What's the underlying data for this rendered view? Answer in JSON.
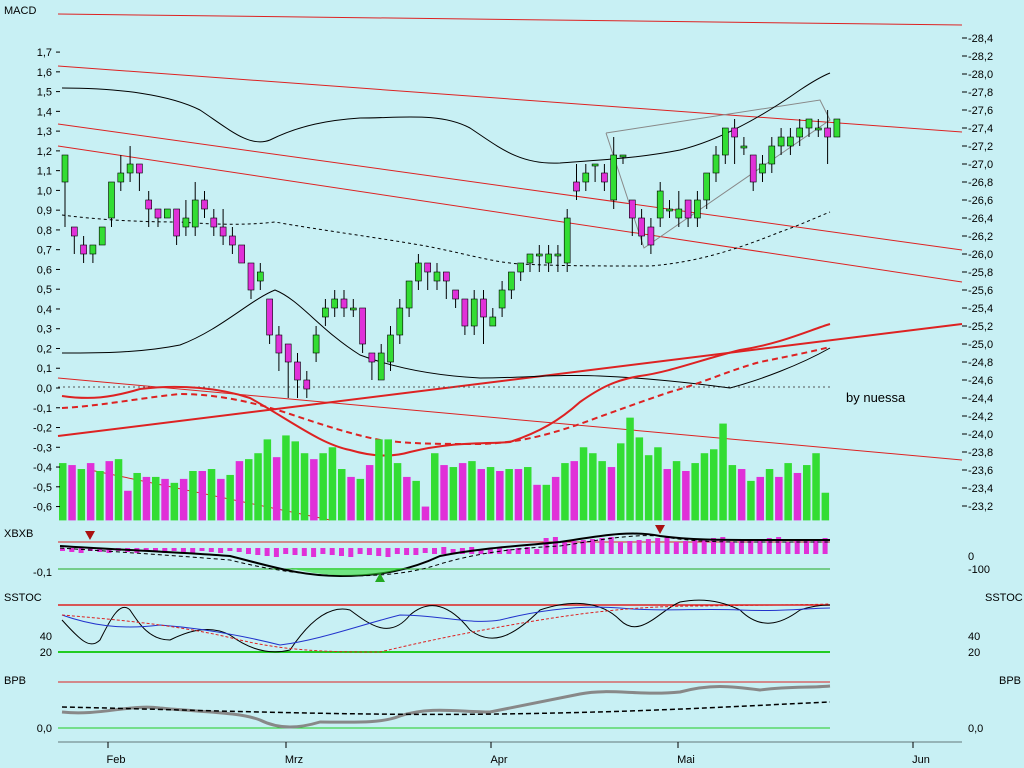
{
  "colors": {
    "background": "#c8f0f4",
    "up_candle": "#33dd33",
    "down_candle": "#e030d8",
    "trend_line": "#dd2222",
    "green_line": "#22cc22",
    "grey_line": "#888888"
  },
  "chart_data": [
    {
      "type": "candlestick",
      "panel": "main",
      "title": "MACD",
      "credit": "by nuessa",
      "left_axis_ticks": [
        "1,7",
        "1,6",
        "1,5",
        "1,4",
        "1,3",
        "1,2",
        "1,1",
        "1,0",
        "0,9",
        "0,8",
        "0,7",
        "0,6",
        "0,5",
        "0,4",
        "0,3",
        "0,2",
        "0,1",
        "0,0",
        "-0,1",
        "-0,2",
        "-0,3",
        "-0,4",
        "-0,5",
        "-0,6"
      ],
      "left_axis_range": [
        -0.6,
        1.7
      ],
      "right_axis_ticks": [
        "28,4",
        "28,2",
        "28,0",
        "27,8",
        "27,6",
        "27,4",
        "27,2",
        "27,0",
        "26,8",
        "26,6",
        "26,4",
        "26,2",
        "26,0",
        "25,8",
        "25,6",
        "25,4",
        "25,2",
        "25,0",
        "24,8",
        "24,6",
        "24,4",
        "24,2",
        "24,0",
        "23,8",
        "23,6",
        "23,4",
        "23,2"
      ],
      "right_axis_range": [
        23.2,
        28.4
      ],
      "x_labels": [
        "Feb",
        "Mrz",
        "Apr",
        "Mai",
        "Jun"
      ],
      "candles": [
        {
          "o": 26.8,
          "c": 27.1,
          "h": 27.1,
          "l": 26.3
        },
        {
          "o": 26.3,
          "c": 26.2,
          "h": 26.3,
          "l": 26.0
        },
        {
          "o": 26.1,
          "c": 26.0,
          "h": 26.2,
          "l": 25.9
        },
        {
          "o": 26.0,
          "c": 26.1,
          "h": 26.1,
          "l": 25.9
        },
        {
          "o": 26.1,
          "c": 26.3,
          "h": 26.3,
          "l": 26.1
        },
        {
          "o": 26.4,
          "c": 26.8,
          "h": 26.8,
          "l": 26.3
        },
        {
          "o": 26.8,
          "c": 26.9,
          "h": 27.1,
          "l": 26.7
        },
        {
          "o": 26.9,
          "c": 27.0,
          "h": 27.2,
          "l": 26.8
        },
        {
          "o": 27.0,
          "c": 26.9,
          "h": 27.0,
          "l": 26.7
        },
        {
          "o": 26.6,
          "c": 26.5,
          "h": 26.7,
          "l": 26.3
        },
        {
          "o": 26.5,
          "c": 26.4,
          "h": 26.5,
          "l": 26.3
        },
        {
          "o": 26.4,
          "c": 26.5,
          "h": 26.5,
          "l": 26.4
        },
        {
          "o": 26.5,
          "c": 26.2,
          "h": 26.5,
          "l": 26.1
        },
        {
          "o": 26.3,
          "c": 26.4,
          "h": 26.6,
          "l": 26.2
        },
        {
          "o": 26.3,
          "c": 26.6,
          "h": 26.8,
          "l": 26.2
        },
        {
          "o": 26.6,
          "c": 26.5,
          "h": 26.7,
          "l": 26.4
        },
        {
          "o": 26.4,
          "c": 26.3,
          "h": 26.5,
          "l": 26.2
        },
        {
          "o": 26.3,
          "c": 26.2,
          "h": 26.5,
          "l": 26.1
        },
        {
          "o": 26.2,
          "c": 26.1,
          "h": 26.3,
          "l": 26.0
        },
        {
          "o": 26.1,
          "c": 25.9,
          "h": 26.1,
          "l": 25.9
        },
        {
          "o": 25.9,
          "c": 25.6,
          "h": 25.9,
          "l": 25.5
        },
        {
          "o": 25.7,
          "c": 25.8,
          "h": 25.9,
          "l": 25.6
        },
        {
          "o": 25.5,
          "c": 25.1,
          "h": 25.5,
          "l": 25.0
        },
        {
          "o": 25.1,
          "c": 24.9,
          "h": 25.2,
          "l": 24.7
        },
        {
          "o": 25.0,
          "c": 24.8,
          "h": 25.0,
          "l": 24.4
        },
        {
          "o": 24.8,
          "c": 24.6,
          "h": 24.9,
          "l": 24.4
        },
        {
          "o": 24.6,
          "c": 24.5,
          "h": 24.7,
          "l": 24.4
        },
        {
          "o": 24.9,
          "c": 25.1,
          "h": 25.2,
          "l": 24.8
        },
        {
          "o": 25.3,
          "c": 25.4,
          "h": 25.5,
          "l": 25.2
        },
        {
          "o": 25.4,
          "c": 25.5,
          "h": 25.6,
          "l": 25.3
        },
        {
          "o": 25.5,
          "c": 25.4,
          "h": 25.6,
          "l": 25.3
        },
        {
          "o": 25.4,
          "c": 25.4,
          "h": 25.5,
          "l": 25.3
        },
        {
          "o": 25.4,
          "c": 25.0,
          "h": 25.4,
          "l": 24.9
        },
        {
          "o": 24.9,
          "c": 24.8,
          "h": 24.9,
          "l": 24.6
        },
        {
          "o": 24.6,
          "c": 24.9,
          "h": 25.0,
          "l": 24.6
        },
        {
          "o": 24.8,
          "c": 25.1,
          "h": 25.2,
          "l": 24.7
        },
        {
          "o": 25.1,
          "c": 25.4,
          "h": 25.5,
          "l": 25.0
        },
        {
          "o": 25.4,
          "c": 25.7,
          "h": 25.7,
          "l": 25.3
        },
        {
          "o": 25.7,
          "c": 25.9,
          "h": 26.0,
          "l": 25.6
        },
        {
          "o": 25.9,
          "c": 25.8,
          "h": 25.9,
          "l": 25.6
        },
        {
          "o": 25.7,
          "c": 25.8,
          "h": 25.9,
          "l": 25.6
        },
        {
          "o": 25.8,
          "c": 25.7,
          "h": 25.8,
          "l": 25.5
        },
        {
          "o": 25.6,
          "c": 25.5,
          "h": 25.6,
          "l": 25.4
        },
        {
          "o": 25.5,
          "c": 25.2,
          "h": 25.5,
          "l": 25.1
        },
        {
          "o": 25.2,
          "c": 25.5,
          "h": 25.6,
          "l": 25.1
        },
        {
          "o": 25.5,
          "c": 25.3,
          "h": 25.6,
          "l": 25.0
        },
        {
          "o": 25.2,
          "c": 25.3,
          "h": 25.4,
          "l": 25.2
        },
        {
          "o": 25.4,
          "c": 25.6,
          "h": 25.7,
          "l": 25.3
        },
        {
          "o": 25.6,
          "c": 25.8,
          "h": 25.8,
          "l": 25.5
        },
        {
          "o": 25.8,
          "c": 25.9,
          "h": 25.9,
          "l": 25.7
        },
        {
          "o": 25.9,
          "c": 26.0,
          "h": 26.0,
          "l": 25.8
        },
        {
          "o": 26.0,
          "c": 26.0,
          "h": 26.1,
          "l": 25.8
        },
        {
          "o": 25.9,
          "c": 26.0,
          "h": 26.1,
          "l": 25.8
        },
        {
          "o": 26.0,
          "c": 26.0,
          "h": 26.1,
          "l": 25.8
        },
        {
          "o": 25.9,
          "c": 26.4,
          "h": 26.5,
          "l": 25.8
        },
        {
          "o": 26.8,
          "c": 26.7,
          "h": 27.0,
          "l": 26.6
        },
        {
          "o": 26.8,
          "c": 26.9,
          "h": 27.0,
          "l": 26.7
        },
        {
          "o": 27.0,
          "c": 27.0,
          "h": 27.0,
          "l": 26.8
        },
        {
          "o": 26.9,
          "c": 26.8,
          "h": 27.0,
          "l": 26.7
        },
        {
          "o": 26.6,
          "c": 27.1,
          "h": 27.3,
          "l": 26.5
        },
        {
          "o": 27.1,
          "c": 27.1,
          "h": 27.1,
          "l": 27.0
        },
        {
          "o": 26.6,
          "c": 26.4,
          "h": 26.6,
          "l": 26.2
        },
        {
          "o": 26.4,
          "c": 26.2,
          "h": 26.5,
          "l": 26.1
        },
        {
          "o": 26.3,
          "c": 26.1,
          "h": 26.4,
          "l": 26.0
        },
        {
          "o": 26.4,
          "c": 26.7,
          "h": 26.8,
          "l": 26.3
        },
        {
          "o": 26.5,
          "c": 26.5,
          "h": 26.6,
          "l": 26.4
        },
        {
          "o": 26.4,
          "c": 26.5,
          "h": 26.7,
          "l": 26.3
        },
        {
          "o": 26.6,
          "c": 26.4,
          "h": 26.6,
          "l": 26.3
        },
        {
          "o": 26.4,
          "c": 26.6,
          "h": 26.7,
          "l": 26.3
        },
        {
          "o": 26.6,
          "c": 26.9,
          "h": 26.9,
          "l": 26.5
        },
        {
          "o": 26.9,
          "c": 27.1,
          "h": 27.2,
          "l": 26.8
        },
        {
          "o": 27.1,
          "c": 27.4,
          "h": 27.4,
          "l": 27.0
        },
        {
          "o": 27.4,
          "c": 27.3,
          "h": 27.5,
          "l": 27.0
        },
        {
          "o": 27.2,
          "c": 27.2,
          "h": 27.3,
          "l": 27.1
        },
        {
          "o": 27.1,
          "c": 26.8,
          "h": 27.1,
          "l": 26.7
        },
        {
          "o": 26.9,
          "c": 27.0,
          "h": 27.1,
          "l": 26.8
        },
        {
          "o": 27.0,
          "c": 27.2,
          "h": 27.3,
          "l": 26.9
        },
        {
          "o": 27.2,
          "c": 27.3,
          "h": 27.4,
          "l": 27.1
        },
        {
          "o": 27.2,
          "c": 27.3,
          "h": 27.4,
          "l": 27.1
        },
        {
          "o": 27.3,
          "c": 27.4,
          "h": 27.5,
          "l": 27.2
        },
        {
          "o": 27.4,
          "c": 27.5,
          "h": 27.5,
          "l": 27.3
        },
        {
          "o": 27.4,
          "c": 27.4,
          "h": 27.5,
          "l": 27.3
        },
        {
          "o": 27.4,
          "c": 27.3,
          "h": 27.6,
          "l": 27.0
        },
        {
          "o": 27.3,
          "c": 27.5,
          "h": 27.5,
          "l": 27.3
        }
      ],
      "histogram_values": [
        -0.38,
        -0.39,
        -0.41,
        -0.38,
        -0.42,
        -0.37,
        -0.36,
        -0.52,
        -0.43,
        -0.45,
        -0.45,
        -0.46,
        -0.48,
        -0.46,
        -0.42,
        -0.42,
        -0.41,
        -0.46,
        -0.44,
        -0.37,
        -0.36,
        -0.33,
        -0.26,
        -0.35,
        -0.24,
        -0.27,
        -0.33,
        -0.36,
        -0.33,
        -0.3,
        -0.41,
        -0.45,
        -0.46,
        -0.39,
        -0.26,
        -0.26,
        -0.38,
        -0.45,
        -0.47,
        -0.6,
        -0.33,
        -0.39,
        -0.4,
        -0.38,
        -0.37,
        -0.41,
        -0.4,
        -0.42,
        -0.41,
        -0.41,
        -0.4,
        -0.49,
        -0.49,
        -0.45,
        -0.38,
        -0.37,
        -0.3,
        -0.33,
        -0.37,
        -0.4,
        -0.28,
        -0.15,
        -0.25,
        -0.34,
        -0.3,
        -0.41,
        -0.37,
        -0.42,
        -0.38,
        -0.33,
        -0.31,
        -0.18,
        -0.39,
        -0.41,
        -0.47,
        -0.45,
        -0.41,
        -0.45,
        -0.38,
        -0.43,
        -0.39,
        -0.33,
        -0.53
      ]
    },
    {
      "type": "indicator",
      "panel": "xbxb",
      "title": "XBXB",
      "left_axis_ticks": [
        "-0,1"
      ],
      "right_axis_ticks": [
        "0",
        "-100"
      ]
    },
    {
      "type": "indicator",
      "panel": "sstoc",
      "title": "SSTOC",
      "title_right": "SSTOC",
      "left_axis_ticks": [
        "40",
        "20"
      ],
      "right_axis_ticks": [
        "40",
        "20"
      ]
    },
    {
      "type": "indicator",
      "panel": "bpb",
      "title": "BPB",
      "title_right": "BPB",
      "left_axis_ticks": [
        "0,0"
      ],
      "right_axis_ticks": [
        "0,0"
      ]
    }
  ]
}
